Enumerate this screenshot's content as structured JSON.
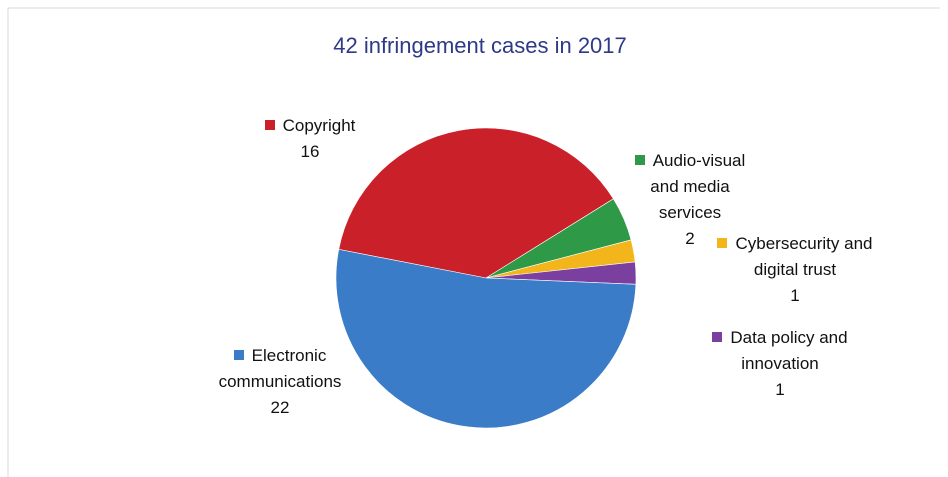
{
  "chart_data": {
    "type": "pie",
    "title": "42 infringement cases in 2017",
    "categories": [
      "Copyright",
      "Audio-visual and media services",
      "Cybersecurity and digital trust",
      "Data policy and innovation",
      "Electronic communications"
    ],
    "values": [
      16,
      2,
      1,
      1,
      22
    ],
    "colors": [
      "#c9202a",
      "#2e9a48",
      "#f2b51c",
      "#7b3fa0",
      "#3a7cc8"
    ]
  }
}
